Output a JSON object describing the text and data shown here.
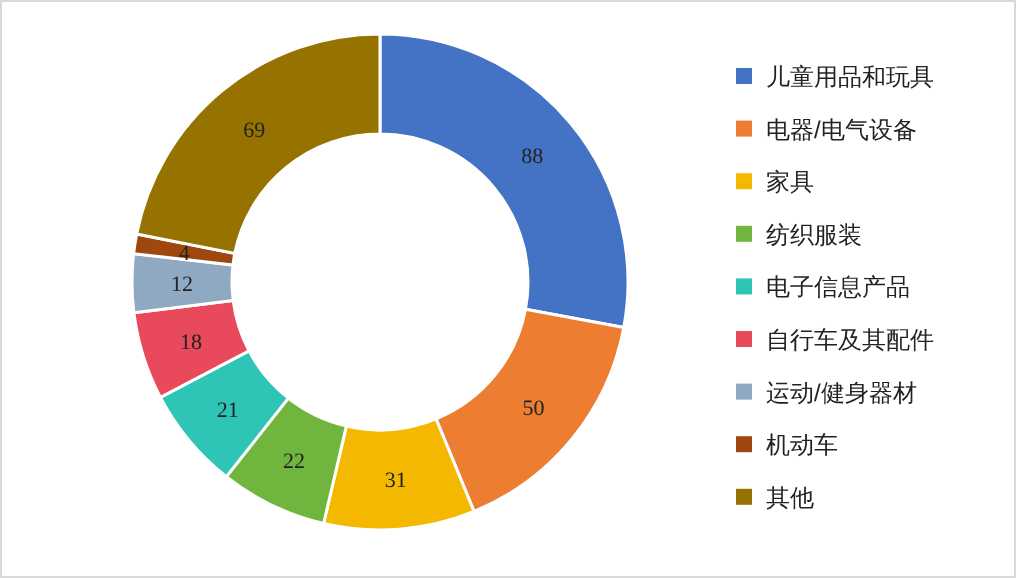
{
  "chart_data": {
    "type": "donut",
    "categories": [
      "儿童用品和玩具",
      "电器/电气设备",
      "家具",
      "纺织服装",
      "电子信息产品",
      "自行车及其配件",
      "运动/健身器材",
      "机动车",
      "其他"
    ],
    "values": [
      88,
      50,
      31,
      22,
      21,
      18,
      12,
      4,
      69
    ],
    "colors": [
      "#4472c4",
      "#ed7d31",
      "#f5b800",
      "#70b63e",
      "#2ec4b6",
      "#e8495b",
      "#8ea9c1",
      "#9e480e",
      "#967300"
    ],
    "data_labels": true,
    "legend": "right"
  }
}
